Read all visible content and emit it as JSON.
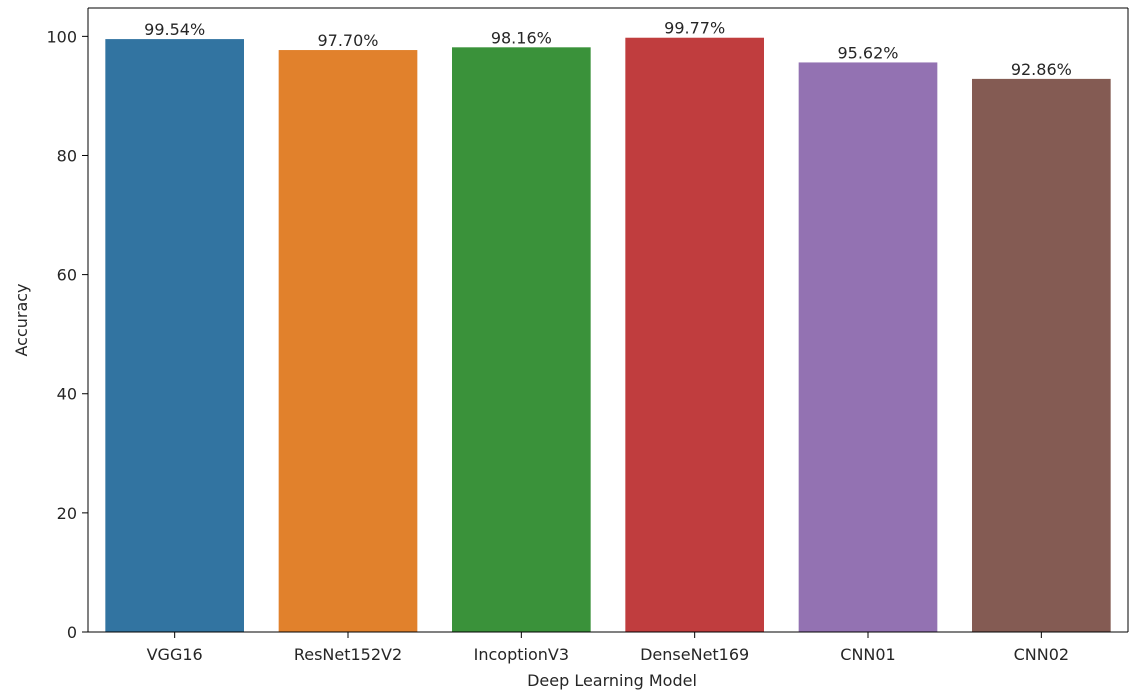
{
  "chart_data": {
    "type": "bar",
    "title": "",
    "xlabel": "Deep Learning Model",
    "ylabel": "Accuracy",
    "categories": [
      "VGG16",
      "ResNet152V2",
      "IncoptionV3",
      "DenseNet169",
      "CNN01",
      "CNN02"
    ],
    "values": [
      99.54,
      97.7,
      98.16,
      99.77,
      95.62,
      92.86
    ],
    "data_labels": [
      "99.54%",
      "97.70%",
      "98.16%",
      "99.77%",
      "95.62%",
      "92.86%"
    ],
    "colors": [
      "#3274a1",
      "#e1812c",
      "#3a923a",
      "#c03d3e",
      "#9372b2",
      "#845b53"
    ],
    "ylim": [
      0,
      104.76
    ],
    "yticks": [
      0,
      20,
      40,
      60,
      80,
      100
    ],
    "ytick_labels": [
      "0",
      "20",
      "40",
      "60",
      "80",
      "100"
    ],
    "grid": false,
    "legend": "none"
  }
}
